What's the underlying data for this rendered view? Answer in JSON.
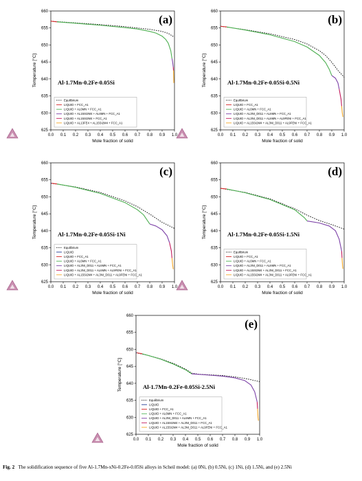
{
  "figure_caption": {
    "label": "Fig. 2",
    "text": "The solidification sequence of five Al-1.7Mn-xNi-0.2Fe-0.05Si alloys in Scheil model: (a) 0Ni, (b) 0.5Ni, (c) 1Ni, (d) 1.5Ni, and (e) 2.5Ni"
  },
  "chart_data": [
    {
      "type": "line",
      "panel_label": "(a)",
      "alloy": "Al-1.7Mn-0.2Fe-0.05Si",
      "xlabel": "Mole fraction of solid",
      "ylabel": "Temperature [°C]",
      "xlim": [
        0.0,
        1.0
      ],
      "ylim": [
        625,
        660
      ],
      "xticks": [
        "0.0",
        "0.1",
        "0.2",
        "0.3",
        "0.4",
        "0.5",
        "0.6",
        "0.7",
        "0.8",
        "0.9",
        "1.0"
      ],
      "yticks": [
        "625",
        "630",
        "635",
        "640",
        "645",
        "650",
        "655",
        "660"
      ],
      "legend": [
        "Equilibrium",
        "LIQUID + FCC_A1",
        "LIQUID + AL6MN + FCC_A1",
        "LIQUID + AL15SI2M4 + AL6MN + FCC_A1",
        "LIQUID + AL15SI2M4 + FCC_A1",
        "LIQUID + AL13FE4 + AL15SI2M4 + FCC_A1"
      ],
      "series": [
        {
          "name": "Equilibrium",
          "color": "#000000",
          "dash": true,
          "x": [
            0,
            0.2,
            0.4,
            0.6,
            0.8,
            0.9,
            0.95,
            0.99
          ],
          "y": [
            657,
            656.5,
            656,
            655.4,
            654.6,
            654,
            653.4,
            652.5
          ]
        },
        {
          "name": "LIQUID + FCC_A1",
          "color": "#d62728",
          "dash": false,
          "x": [
            0,
            0.05
          ],
          "y": [
            657,
            656.8
          ]
        },
        {
          "name": "LIQUID + AL6MN + FCC_A1",
          "color": "#4caf50",
          "dash": false,
          "x": [
            0.05,
            0.2,
            0.4,
            0.6,
            0.7,
            0.8,
            0.85,
            0.9,
            0.93,
            0.95,
            0.97,
            0.98
          ],
          "y": [
            656.8,
            656.4,
            655.8,
            655.1,
            654.7,
            654,
            653.5,
            652.6,
            651.6,
            650.5,
            648.3,
            646
          ]
        },
        {
          "name": "LIQUID + AL15SI2M4 + AL6MN + FCC_A1",
          "color": "#7b3fa6",
          "dash": false,
          "x": [
            0.98,
            0.985,
            0.99
          ],
          "y": [
            646,
            645,
            643.5
          ]
        },
        {
          "name": "LIQUID + AL15SI2M4 + FCC_A1",
          "color": "#c2185b",
          "dash": false,
          "x": [
            0.99,
            0.992
          ],
          "y": [
            643.5,
            642.5
          ]
        },
        {
          "name": "LIQUID + AL13FE4 + AL15SI2M4 + FCC_A1",
          "color": "#f5a623",
          "dash": false,
          "x": [
            0.992,
            0.994,
            0.995
          ],
          "y": [
            642.5,
            640,
            638.8
          ]
        }
      ]
    },
    {
      "type": "line",
      "panel_label": "(b)",
      "alloy": "Al-1.7Mn-0.2Fe-0.05Si-0.5Ni",
      "xlabel": "Mole fraction of solid",
      "ylabel": "Temperature [°C]",
      "xlim": [
        0.0,
        1.0
      ],
      "ylim": [
        625,
        660
      ],
      "xticks": [
        "0.0",
        "0.1",
        "0.2",
        "0.3",
        "0.4",
        "0.5",
        "0.6",
        "0.7",
        "0.8",
        "0.9",
        "1.0"
      ],
      "yticks": [
        "625",
        "630",
        "635",
        "640",
        "645",
        "650",
        "655",
        "660"
      ],
      "legend": [
        "Equilibrium",
        "LIQUID + FCC_A1",
        "LIQUID + AL6MN + FCC_A1",
        "LIQUID + AL3NI_D011 + AL6MN + FCC_A1",
        "LIQUID + AL3NI_D011 + AL6MN + AL9FENI + FCC_A1",
        "LIQUID + AL15SI2M4 + AL3NI_D011 + AL9FENI + FCC_A1"
      ],
      "series": [
        {
          "name": "Equilibrium",
          "color": "#000000",
          "dash": true,
          "x": [
            0,
            0.2,
            0.4,
            0.6,
            0.7,
            0.8,
            0.85,
            0.9,
            0.95,
            1.0
          ],
          "y": [
            655.5,
            654.5,
            653.3,
            651.6,
            650.3,
            648.3,
            646.9,
            644.9,
            642.5,
            640.5
          ]
        },
        {
          "name": "LIQUID + FCC_A1",
          "color": "#d62728",
          "dash": false,
          "x": [
            0,
            0.05
          ],
          "y": [
            655.5,
            655.3
          ]
        },
        {
          "name": "LIQUID + AL6MN + FCC_A1",
          "color": "#4caf50",
          "dash": false,
          "x": [
            0.05,
            0.2,
            0.4,
            0.6,
            0.7,
            0.8,
            0.85,
            0.88,
            0.9
          ],
          "y": [
            655.3,
            654.4,
            653,
            651,
            649.4,
            646.9,
            644.8,
            642.8,
            641
          ]
        },
        {
          "name": "LIQUID + AL3NI_D011 + AL6MN + FCC_A1",
          "color": "#7b3fa6",
          "dash": false,
          "x": [
            0.9,
            0.93,
            0.95,
            0.96
          ],
          "y": [
            641,
            640.2,
            638.8,
            637
          ]
        },
        {
          "name": "LIQUID + AL3NI_D011 + AL6MN + AL9FENI + FCC_A1",
          "color": "#c2185b",
          "dash": false,
          "x": [
            0.96,
            0.975,
            0.98
          ],
          "y": [
            637,
            634,
            632
          ]
        },
        {
          "name": "LIQUID + AL15SI2M4 + AL3NI_D011 + AL9FENI + FCC_A1",
          "color": "#f5a623",
          "dash": false,
          "x": [
            0.98,
            0.985,
            0.99
          ],
          "y": [
            632,
            630,
            628.8
          ]
        }
      ]
    },
    {
      "type": "line",
      "panel_label": "(c)",
      "alloy": "Al-1.7Mn-0.2Fe-0.05Si-1Ni",
      "xlabel": "Mole fraction of solid",
      "ylabel": "Temperature [°C]",
      "xlim": [
        0.0,
        1.0
      ],
      "ylim": [
        625,
        660
      ],
      "xticks": [
        "0.0",
        "0.1",
        "0.2",
        "0.3",
        "0.4",
        "0.5",
        "0.6",
        "0.7",
        "0.8",
        "0.9",
        "1.0"
      ],
      "yticks": [
        "625",
        "630",
        "635",
        "640",
        "645",
        "650",
        "655",
        "660"
      ],
      "legend": [
        "Equilibrium",
        "LIQUID",
        "LIQUID + FCC_A1",
        "LIQUID + AL6MN + FCC_A1",
        "LIQUID + AL3NI_D011 + AL6MN + FCC_A1",
        "LIQUID + AL3NI_D011 + AL6MN + AL9FENI + FCC_A1",
        "LIQUID + AL15SI2M4 + AL3NI_D011 + AL9FENI + FCC_A1"
      ],
      "series": [
        {
          "name": "Equilibrium",
          "color": "#000000",
          "dash": true,
          "x": [
            0,
            0.2,
            0.4,
            0.6,
            0.7,
            0.8,
            0.9,
            1.0
          ],
          "y": [
            654,
            652.9,
            651.3,
            648.8,
            647.1,
            644.9,
            642.5,
            640.7
          ]
        },
        {
          "name": "LIQUID",
          "color": "#1f3a93",
          "dash": false,
          "x": [
            0,
            0.005
          ],
          "y": [
            654,
            654
          ]
        },
        {
          "name": "LIQUID + FCC_A1",
          "color": "#d62728",
          "dash": false,
          "x": [
            0.005,
            0.05
          ],
          "y": [
            654,
            653.8
          ]
        },
        {
          "name": "LIQUID + AL6MN + FCC_A1",
          "color": "#4caf50",
          "dash": false,
          "x": [
            0.05,
            0.2,
            0.4,
            0.6,
            0.7,
            0.75,
            0.8
          ],
          "y": [
            653.8,
            652.8,
            651,
            648.3,
            646.2,
            644.7,
            642
          ]
        },
        {
          "name": "LIQUID + AL3NI_D011 + AL6MN + FCC_A1",
          "color": "#7b3fa6",
          "dash": false,
          "x": [
            0.8,
            0.85,
            0.9,
            0.94,
            0.96
          ],
          "y": [
            642,
            641.4,
            640.3,
            638.5,
            636.5
          ]
        },
        {
          "name": "LIQUID + AL3NI_D011 + AL6MN + AL9FENI + FCC_A1",
          "color": "#c2185b",
          "dash": false,
          "x": [
            0.96,
            0.975,
            0.98
          ],
          "y": [
            636.5,
            634,
            632
          ]
        },
        {
          "name": "LIQUID + AL15SI2M4 + AL3NI_D011 + AL9FENI + FCC_A1",
          "color": "#f5a623",
          "dash": false,
          "x": [
            0.98,
            0.985,
            0.99
          ],
          "y": [
            632,
            630,
            628.7
          ]
        }
      ]
    },
    {
      "type": "line",
      "panel_label": "(d)",
      "alloy": "Al-1.7Mn-0.2Fe-0.05Si-1.5Ni",
      "xlabel": "Mole fraction of solid",
      "ylabel": "Temperature [°C]",
      "xlim": [
        0.0,
        1.0
      ],
      "ylim": [
        625,
        660
      ],
      "xticks": [
        "0.0",
        "0.1",
        "0.2",
        "0.3",
        "0.4",
        "0.5",
        "0.6",
        "0.7",
        "0.8",
        "0.9",
        "1.0"
      ],
      "yticks": [
        "625",
        "630",
        "635",
        "640",
        "645",
        "650",
        "655",
        "660"
      ],
      "legend": [
        "Equilibrium",
        "LIQUID + FCC_A1",
        "LIQUID + AL6MN + FCC_A1",
        "LIQUID + AL3NI_D011 + AL6MN + FCC_A1",
        "LIQUID + AL15SI2M4 + AL3NI_D011 + FCC_A1",
        "LIQUID + AL15SI2M4 + AL3NI_D011 + AL9FENI + FCC_A1"
      ],
      "series": [
        {
          "name": "Equilibrium",
          "color": "#000000",
          "dash": true,
          "x": [
            0,
            0.2,
            0.4,
            0.6,
            0.7,
            0.8,
            0.9,
            1.0
          ],
          "y": [
            652.5,
            651.3,
            649.4,
            646.5,
            644.6,
            643,
            641.8,
            640.5
          ]
        },
        {
          "name": "LIQUID + FCC_A1",
          "color": "#d62728",
          "dash": false,
          "x": [
            0,
            0.05
          ],
          "y": [
            652.5,
            652.3
          ]
        },
        {
          "name": "LIQUID + AL6MN + FCC_A1",
          "color": "#4caf50",
          "dash": false,
          "x": [
            0.05,
            0.2,
            0.4,
            0.6,
            0.68,
            0.7
          ],
          "y": [
            652.3,
            651.2,
            649.2,
            646.2,
            643.8,
            642.9
          ]
        },
        {
          "name": "LIQUID + AL3NI_D011 + AL6MN + FCC_A1",
          "color": "#7b3fa6",
          "dash": false,
          "x": [
            0.7,
            0.8,
            0.88,
            0.93,
            0.96,
            0.98
          ],
          "y": [
            642.9,
            642.3,
            641.4,
            640,
            637.5,
            634
          ]
        },
        {
          "name": "LIQUID + AL15SI2M4 + AL3NI_D011 + FCC_A1",
          "color": "#c2185b",
          "dash": false,
          "x": [
            0.98,
            0.983
          ],
          "y": [
            634,
            632
          ]
        },
        {
          "name": "LIQUID + AL15SI2M4 + AL3NI_D011 + AL9FENI + FCC_A1",
          "color": "#f5a623",
          "dash": false,
          "x": [
            0.983,
            0.987,
            0.99
          ],
          "y": [
            632,
            629.8,
            628.8
          ]
        }
      ]
    },
    {
      "type": "line",
      "panel_label": "(e)",
      "alloy": "Al-1.7Mn-0.2Fe-0.05Si-2.5Ni",
      "xlabel": "Mole fraction of solid",
      "ylabel": "Temperature [°C]",
      "xlim": [
        0.0,
        1.0
      ],
      "ylim": [
        625,
        660
      ],
      "xticks": [
        "0.0",
        "0.1",
        "0.2",
        "0.3",
        "0.4",
        "0.5",
        "0.6",
        "0.7",
        "0.8",
        "0.9",
        "1.0"
      ],
      "yticks": [
        "625",
        "630",
        "635",
        "640",
        "645",
        "650",
        "655",
        "660"
      ],
      "legend": [
        "Equilibrium",
        "LIQUID",
        "LIQUID + FCC_A1",
        "LIQUID + AL6MN + FCC_A1",
        "LIQUID + AL3NI_D011 + AL6MN + FCC_A1",
        "LIQUID + AL15SI2M4 + AL3NI_D011 + FCC_A1",
        "LIQUID + AL15SI2M4 + AL3NI_D011 + AL9FENI + FCC_A1"
      ],
      "series": [
        {
          "name": "Equilibrium",
          "color": "#000000",
          "dash": true,
          "x": [
            0,
            0.1,
            0.2,
            0.3,
            0.4,
            0.45,
            0.5,
            0.6,
            0.7,
            0.8,
            0.9,
            1.0
          ],
          "y": [
            649,
            648.2,
            647.2,
            645.9,
            644.2,
            643,
            642.7,
            642.5,
            642.3,
            641.9,
            641.3,
            640.5
          ]
        },
        {
          "name": "LIQUID",
          "color": "#1f3a93",
          "dash": false,
          "x": [
            0,
            0.005
          ],
          "y": [
            649,
            649
          ]
        },
        {
          "name": "LIQUID + FCC_A1",
          "color": "#d62728",
          "dash": false,
          "x": [
            0.005,
            0.05
          ],
          "y": [
            649,
            648.7
          ]
        },
        {
          "name": "LIQUID + AL6MN + FCC_A1",
          "color": "#4caf50",
          "dash": false,
          "x": [
            0.05,
            0.1,
            0.2,
            0.3,
            0.4,
            0.45
          ],
          "y": [
            648.7,
            648.2,
            647.1,
            645.7,
            644,
            642.8
          ]
        },
        {
          "name": "LIQUID + AL3NI_D011 + AL6MN + FCC_A1",
          "color": "#7b3fa6",
          "dash": false,
          "x": [
            0.45,
            0.6,
            0.7,
            0.8,
            0.88,
            0.93,
            0.96,
            0.98
          ],
          "y": [
            642.8,
            642.4,
            642.1,
            641.6,
            640.8,
            639.5,
            637.5,
            634.5
          ]
        },
        {
          "name": "LIQUID + AL15SI2M4 + AL3NI_D011 + FCC_A1",
          "color": "#c2185b",
          "dash": false,
          "x": [
            0.98,
            0.983
          ],
          "y": [
            634.5,
            632.5
          ]
        },
        {
          "name": "LIQUID + AL15SI2M4 + AL3NI_D011 + AL9FENI + FCC_A1",
          "color": "#f5a623",
          "dash": false,
          "x": [
            0.983,
            0.987,
            0.99
          ],
          "y": [
            632.5,
            630,
            629
          ]
        }
      ]
    }
  ]
}
